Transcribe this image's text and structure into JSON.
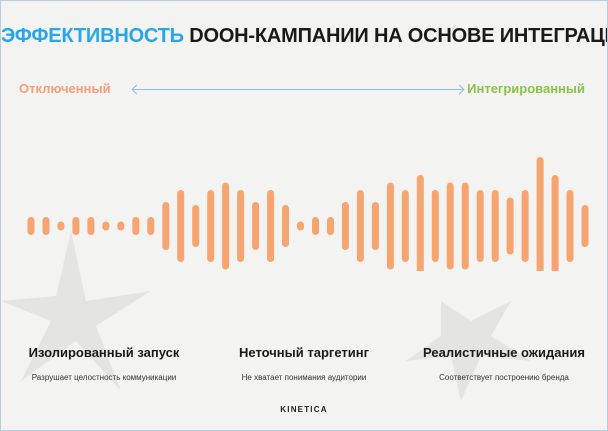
{
  "header": {
    "title_accent": "ЭФФЕКТИВНОСТЬ",
    "title_rest": "DOOH-КАМПАНИИ НА ОСНОВЕ ИНТЕГРАЦИИ И ОЖИДАНИЙ"
  },
  "scale": {
    "left_label": "Отключенный",
    "right_label": "Интегрированный"
  },
  "columns": [
    {
      "title": "Изолированный запуск",
      "subtitle": "Разрушает целостность коммуникации"
    },
    {
      "title": "Неточный таргетинг",
      "subtitle": "Не хватает понимания аудитории"
    },
    {
      "title": "Реалистичные ожидания",
      "subtitle": "Соответствует построению бренда"
    }
  ],
  "footer": {
    "brand": "KINETICA"
  },
  "colors": {
    "accent_blue": "#27a6e8",
    "bar_orange": "#f6a570",
    "left_label": "#f2a07a",
    "right_label": "#8bc34a"
  },
  "waveform": {
    "levels": [
      0.12,
      0.12,
      0.06,
      0.12,
      0.12,
      0.06,
      0.06,
      0.12,
      0.12,
      0.32,
      0.48,
      0.28,
      0.48,
      0.58,
      0.48,
      0.32,
      0.48,
      0.28,
      0.06,
      0.12,
      0.12,
      0.32,
      0.48,
      0.32,
      0.58,
      0.48,
      0.68,
      0.48,
      0.58,
      0.58,
      0.48,
      0.48,
      0.38,
      0.48,
      0.92,
      0.68,
      0.48,
      0.28
    ]
  }
}
